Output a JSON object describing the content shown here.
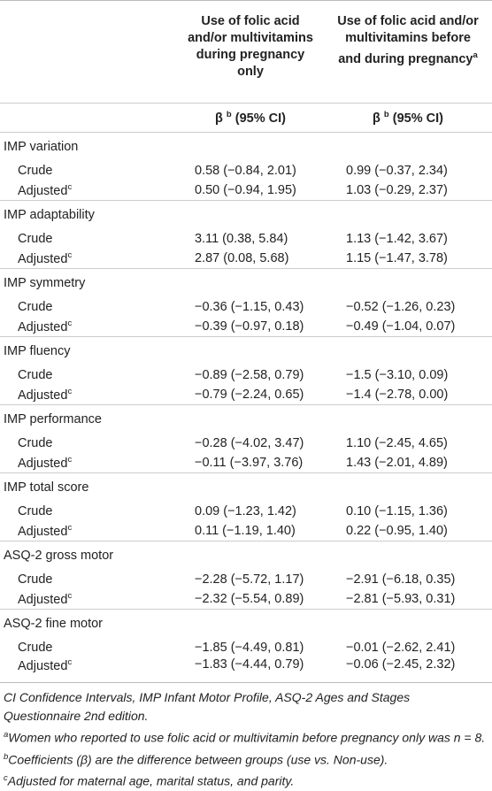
{
  "table": {
    "columns": [
      {
        "title": "Use of folic acid and/or multivitamins during pregnancy only"
      },
      {
        "title": "Use of folic acid and/or multivitamins before and during pregnancy",
        "sup": "a"
      }
    ],
    "subheader": {
      "symbol": "β",
      "sup": "b",
      "ci": "(95% CI)"
    },
    "groups": [
      {
        "name": "IMP variation",
        "rows": [
          {
            "label": "Crude",
            "cells": [
              "0.58 (−0.84, 2.01)",
              "0.99 (−0.37, 2.34)"
            ]
          },
          {
            "label": "Adjusted",
            "sup": "c",
            "cells": [
              "0.50 (−0.94, 1.95)",
              "1.03 (−0.29, 2.37)"
            ]
          }
        ]
      },
      {
        "name": "IMP adaptability",
        "rows": [
          {
            "label": "Crude",
            "cells": [
              "3.11 (0.38, 5.84)",
              "1.13 (−1.42, 3.67)"
            ]
          },
          {
            "label": "Adjusted",
            "sup": "c",
            "cells": [
              "2.87 (0.08, 5.68)",
              "1.15 (−1.47, 3.78)"
            ]
          }
        ]
      },
      {
        "name": "IMP symmetry",
        "rows": [
          {
            "label": "Crude",
            "cells": [
              "−0.36 (−1.15, 0.43)",
              "−0.52 (−1.26, 0.23)"
            ]
          },
          {
            "label": "Adjusted",
            "sup": "c",
            "cells": [
              "−0.39 (−0.97, 0.18)",
              "−0.49 (−1.04, 0.07)"
            ]
          }
        ]
      },
      {
        "name": "IMP fluency",
        "rows": [
          {
            "label": "Crude",
            "cells": [
              "−0.89 (−2.58, 0.79)",
              "−1.5 (−3.10, 0.09)"
            ]
          },
          {
            "label": "Adjusted",
            "sup": "c",
            "cells": [
              "−0.79 (−2.24, 0.65)",
              "−1.4 (−2.78, 0.00)"
            ]
          }
        ]
      },
      {
        "name": "IMP performance",
        "rows": [
          {
            "label": "Crude",
            "cells": [
              "−0.28 (−4.02, 3.47)",
              "1.10 (−2.45, 4.65)"
            ]
          },
          {
            "label": "Adjusted",
            "sup": "c",
            "cells": [
              "−0.11 (−3.97, 3.76)",
              "1.43 (−2.01, 4.89)"
            ]
          }
        ]
      },
      {
        "name": "IMP total score",
        "rows": [
          {
            "label": "Crude",
            "cells": [
              "0.09 (−1.23, 1.42)",
              "0.10 (−1.15, 1.36)"
            ]
          },
          {
            "label": "Adjusted",
            "sup": "c",
            "cells": [
              "0.11 (−1.19, 1.40)",
              "0.22 (−0.95, 1.40)"
            ]
          }
        ]
      },
      {
        "name": "ASQ-2 gross motor",
        "rows": [
          {
            "label": "Crude",
            "cells": [
              "−2.28 (−5.72, 1.17)",
              "−2.91 (−6.18, 0.35)"
            ]
          },
          {
            "label": "Adjusted",
            "sup": "c",
            "cells": [
              "−2.32 (−5.54, 0.89)",
              "−2.81 (−5.93, 0.31)"
            ]
          }
        ]
      },
      {
        "name": "ASQ-2 fine motor",
        "rows": [
          {
            "label": "Crude",
            "cells": [
              "−1.85 (−4.49, 0.81)",
              "−0.01 (−2.62, 2.41)"
            ]
          },
          {
            "label": "Adjusted",
            "sup": "c",
            "cells": [
              "−1.83 (−4.44, 0.79)",
              "−0.06 (−2.45, 2.32)"
            ]
          }
        ]
      }
    ],
    "footnotes": [
      {
        "text": "CI Confidence Intervals, IMP Infant Motor Profile, ASQ-2 Ages and Stages Questionnaire 2nd edition."
      },
      {
        "sup": "a",
        "text": "Women who reported to use folic acid or multivitamin before pregnancy only was n = 8."
      },
      {
        "sup": "b",
        "text": "Coefficients (β) are the difference between groups (use vs. Non-use)."
      },
      {
        "sup": "c",
        "text": "Adjusted for maternal age, marital status, and parity."
      }
    ]
  }
}
